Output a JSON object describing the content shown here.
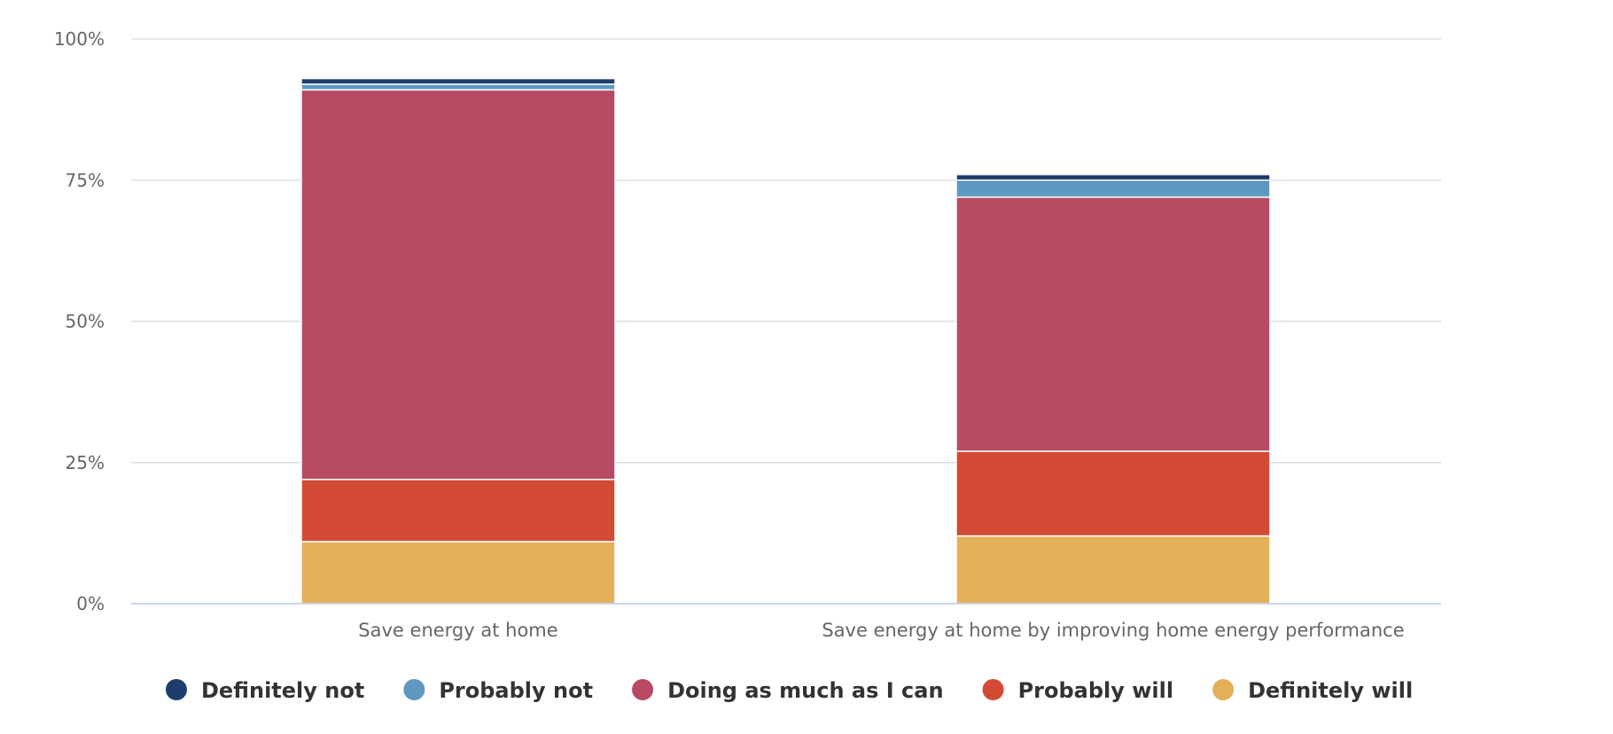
{
  "chart_data": {
    "type": "bar",
    "stacked": true,
    "categories": [
      "Save energy at home",
      "Save energy at home by improving home energy performance"
    ],
    "series": [
      {
        "name": "Definitely will",
        "color": "#e3b05a",
        "values": [
          11,
          12
        ]
      },
      {
        "name": "Probably will",
        "color": "#d24a33",
        "values": [
          11,
          15
        ]
      },
      {
        "name": "Doing as much as I can",
        "color": "#b84a61",
        "values": [
          69,
          45
        ]
      },
      {
        "name": "Probably not",
        "color": "#5e98c1",
        "values": [
          1,
          3
        ]
      },
      {
        "name": "Definitely not",
        "color": "#1c3d6e",
        "values": [
          1,
          1
        ]
      }
    ],
    "legend_order": [
      "Definitely not",
      "Probably not",
      "Doing as much as I can",
      "Probably will",
      "Definitely will"
    ],
    "yticks": [
      0,
      25,
      50,
      75,
      100
    ],
    "ytick_labels": [
      "0%",
      "25%",
      "50%",
      "75%",
      "100%"
    ],
    "ylim": [
      0,
      100
    ],
    "grid": true,
    "legend_position": "bottom"
  }
}
